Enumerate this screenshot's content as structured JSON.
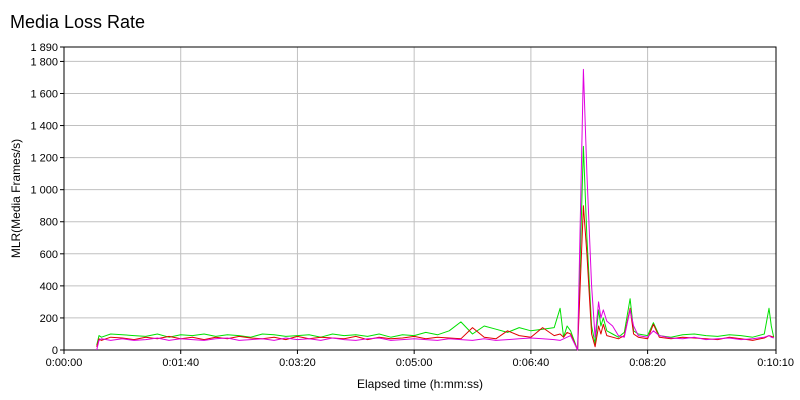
{
  "chart_data": {
    "type": "line",
    "title": "Media Loss Rate",
    "xlabel": "Elapsed time (h:mm:ss)",
    "ylabel": "MLR(Media Frames/s)",
    "xlim": [
      0,
      610
    ],
    "ylim": [
      0,
      1890
    ],
    "x_ticks": [
      0,
      100,
      200,
      300,
      400,
      500,
      610
    ],
    "x_tick_labels": [
      "0:00:00",
      "0:01:40",
      "0:03:20",
      "0:05:00",
      "0:06:40",
      "0:08:20",
      "0:10:10"
    ],
    "y_ticks": [
      0,
      200,
      400,
      600,
      800,
      1000,
      1200,
      1400,
      1600,
      1800,
      1890
    ],
    "y_tick_labels": [
      "0",
      "200",
      "400",
      "600",
      "800",
      "1 000",
      "1 200",
      "1 400",
      "1 600",
      "1 800",
      "1 890"
    ],
    "grid": true,
    "series": [
      {
        "color": "#00e000",
        "x": [
          28,
          30,
          32,
          40,
          50,
          60,
          70,
          80,
          90,
          100,
          110,
          120,
          130,
          140,
          150,
          160,
          170,
          180,
          190,
          200,
          210,
          220,
          230,
          240,
          250,
          260,
          270,
          280,
          290,
          300,
          310,
          320,
          330,
          340,
          350,
          360,
          370,
          380,
          390,
          400,
          410,
          420,
          425,
          428,
          431,
          434,
          440,
          445,
          448,
          452,
          455,
          458,
          460,
          462,
          465,
          470,
          475,
          480,
          485,
          488,
          492,
          500,
          505,
          510,
          520,
          530,
          540,
          550,
          560,
          570,
          580,
          590,
          600,
          604,
          606,
          608
        ],
        "y": [
          30,
          90,
          80,
          100,
          95,
          90,
          85,
          100,
          80,
          95,
          90,
          100,
          85,
          95,
          90,
          80,
          100,
          95,
          85,
          90,
          95,
          80,
          100,
          90,
          95,
          85,
          100,
          80,
          95,
          90,
          110,
          95,
          120,
          175,
          100,
          150,
          130,
          110,
          140,
          120,
          130,
          140,
          260,
          80,
          150,
          120,
          0,
          1270,
          700,
          150,
          40,
          250,
          150,
          200,
          120,
          100,
          80,
          110,
          320,
          120,
          100,
          90,
          170,
          90,
          80,
          95,
          100,
          90,
          85,
          95,
          90,
          80,
          100,
          260,
          150,
          80
        ]
      },
      {
        "color": "#e00000",
        "x": [
          28,
          30,
          32,
          40,
          50,
          60,
          70,
          80,
          90,
          100,
          110,
          120,
          130,
          140,
          150,
          160,
          170,
          180,
          190,
          200,
          210,
          220,
          230,
          240,
          250,
          260,
          270,
          280,
          290,
          300,
          310,
          320,
          330,
          340,
          350,
          360,
          370,
          380,
          390,
          400,
          410,
          420,
          425,
          428,
          431,
          434,
          440,
          445,
          448,
          452,
          455,
          458,
          460,
          462,
          465,
          470,
          475,
          480,
          485,
          488,
          492,
          500,
          505,
          510,
          520,
          530,
          540,
          550,
          560,
          570,
          580,
          590,
          600,
          604,
          606,
          608
        ],
        "y": [
          20,
          70,
          60,
          80,
          75,
          65,
          80,
          70,
          85,
          70,
          80,
          65,
          80,
          70,
          85,
          75,
          70,
          80,
          65,
          85,
          70,
          80,
          75,
          70,
          85,
          65,
          80,
          70,
          75,
          85,
          70,
          80,
          75,
          70,
          140,
          80,
          70,
          120,
          90,
          80,
          140,
          90,
          100,
          80,
          110,
          100,
          0,
          900,
          600,
          100,
          20,
          150,
          100,
          160,
          90,
          80,
          70,
          90,
          260,
          100,
          80,
          70,
          160,
          80,
          70,
          80,
          75,
          70,
          65,
          80,
          70,
          60,
          75,
          90,
          85,
          80
        ]
      },
      {
        "color": "#e000e0",
        "x": [
          28,
          30,
          32,
          40,
          50,
          60,
          70,
          80,
          90,
          100,
          110,
          120,
          130,
          140,
          150,
          160,
          170,
          180,
          190,
          200,
          210,
          220,
          230,
          240,
          250,
          260,
          270,
          280,
          290,
          300,
          310,
          320,
          330,
          340,
          350,
          360,
          370,
          380,
          390,
          400,
          410,
          420,
          425,
          428,
          431,
          434,
          440,
          445,
          448,
          452,
          455,
          458,
          460,
          462,
          465,
          470,
          475,
          480,
          485,
          488,
          492,
          500,
          505,
          510,
          520,
          530,
          540,
          550,
          560,
          570,
          580,
          590,
          600,
          604,
          606,
          608
        ],
        "y": [
          0,
          60,
          70,
          60,
          70,
          60,
          65,
          75,
          60,
          70,
          65,
          60,
          70,
          75,
          60,
          65,
          70,
          60,
          75,
          65,
          70,
          60,
          75,
          65,
          60,
          70,
          75,
          60,
          65,
          70,
          65,
          60,
          70,
          65,
          60,
          70,
          60,
          65,
          70,
          75,
          70,
          65,
          60,
          70,
          80,
          90,
          0,
          1750,
          1100,
          400,
          80,
          300,
          200,
          250,
          180,
          150,
          90,
          80,
          250,
          150,
          90,
          80,
          120,
          90,
          75,
          70,
          80,
          65,
          70,
          75,
          65,
          70,
          80,
          90,
          80,
          75
        ]
      }
    ]
  }
}
